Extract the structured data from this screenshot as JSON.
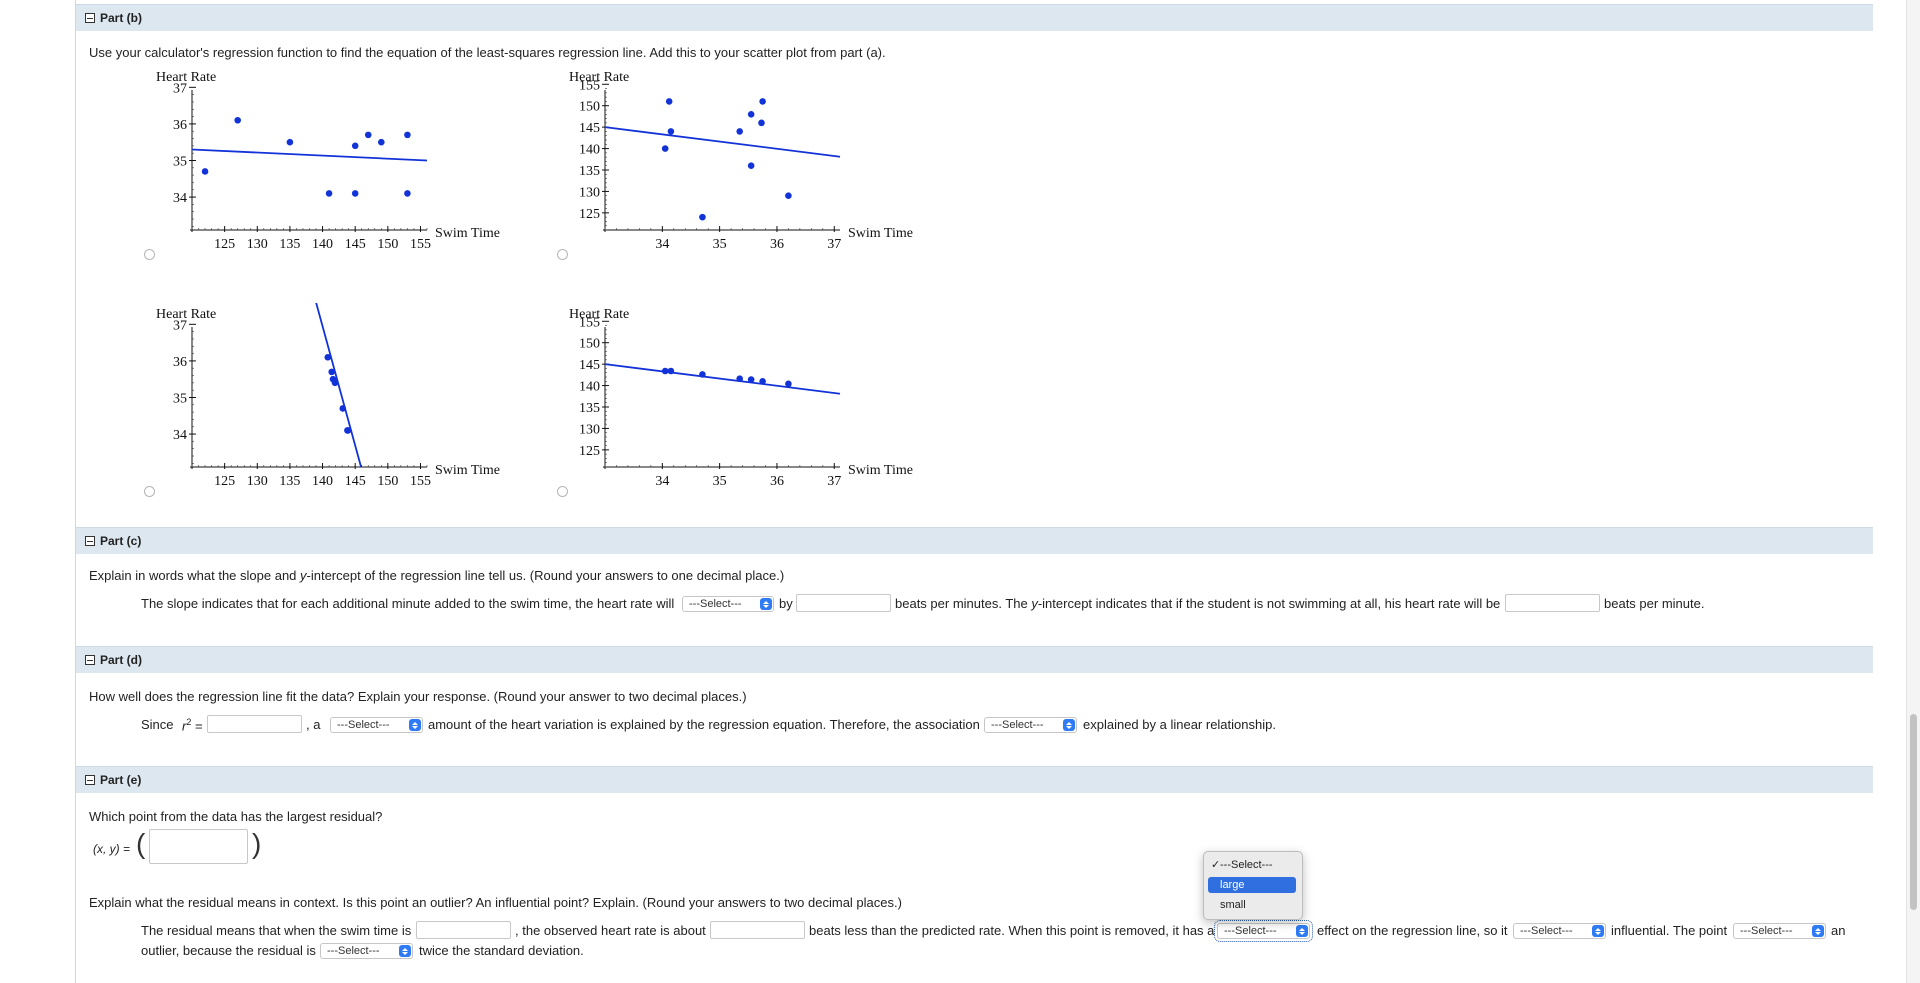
{
  "part_b": {
    "title": "Part (b)",
    "question": "Use your calculator's regression function to find the equation of the least-squares regression line. Add this to your scatter plot from part (a)."
  },
  "chart_data": [
    {
      "type": "scatter",
      "ylabel": "Heart Rate",
      "xlabel": "Swim Time",
      "x_ticks": [
        125,
        130,
        135,
        140,
        145,
        150,
        155
      ],
      "y_ticks": [
        34,
        35,
        36,
        37
      ],
      "xlim": [
        120,
        156
      ],
      "ylim": [
        33.1,
        37.2
      ],
      "points": [
        {
          "x": 127,
          "y": 36.1
        },
        {
          "x": 122,
          "y": 34.7
        },
        {
          "x": 135,
          "y": 35.5
        },
        {
          "x": 141,
          "y": 34.1
        },
        {
          "x": 145,
          "y": 34.1
        },
        {
          "x": 145,
          "y": 35.4
        },
        {
          "x": 147,
          "y": 35.7
        },
        {
          "x": 149,
          "y": 35.5
        },
        {
          "x": 153,
          "y": 35.7
        },
        {
          "x": 153,
          "y": 34.1
        }
      ],
      "line": [
        {
          "x": 120,
          "y": 35.3
        },
        {
          "x": 156,
          "y": 35.0
        }
      ]
    },
    {
      "type": "scatter",
      "ylabel": "Heart Rate",
      "xlabel": "Swim Time",
      "x_ticks": [
        34,
        35,
        36,
        37
      ],
      "y_ticks": [
        125,
        130,
        135,
        140,
        145,
        150,
        155
      ],
      "xlim": [
        33.0,
        37.1
      ],
      "ylim": [
        121,
        156
      ],
      "points": [
        {
          "x": 34.12,
          "y": 151
        },
        {
          "x": 34.15,
          "y": 144
        },
        {
          "x": 34.05,
          "y": 140
        },
        {
          "x": 34.7,
          "y": 124
        },
        {
          "x": 35.35,
          "y": 144
        },
        {
          "x": 35.55,
          "y": 148
        },
        {
          "x": 35.55,
          "y": 136
        },
        {
          "x": 35.75,
          "y": 151
        },
        {
          "x": 35.73,
          "y": 146
        },
        {
          "x": 36.2,
          "y": 129
        }
      ],
      "line": [
        {
          "x": 33.0,
          "y": 145.0
        },
        {
          "x": 37.1,
          "y": 138.1
        }
      ]
    },
    {
      "type": "scatter",
      "ylabel": "Heart Rate",
      "xlabel": "Swim Time",
      "x_ticks": [
        125,
        130,
        135,
        140,
        145,
        150,
        155
      ],
      "y_ticks": [
        34,
        35,
        36,
        37
      ],
      "xlim": [
        120,
        156
      ],
      "ylim": [
        33.1,
        37.2
      ],
      "points": [
        {
          "x": 140.8,
          "y": 36.1
        },
        {
          "x": 141.4,
          "y": 35.7
        },
        {
          "x": 141.6,
          "y": 35.5
        },
        {
          "x": 141.9,
          "y": 35.4
        },
        {
          "x": 143.1,
          "y": 34.7
        },
        {
          "x": 143.8,
          "y": 34.1
        },
        {
          "x": 143.9,
          "y": 34.1
        }
      ],
      "line": [
        {
          "x": 139.0,
          "y": 37.6
        },
        {
          "x": 145.9,
          "y": 33.1
        }
      ]
    },
    {
      "type": "scatter",
      "ylabel": "Heart Rate",
      "xlabel": "Swim Time",
      "x_ticks": [
        34,
        35,
        36,
        37
      ],
      "y_ticks": [
        125,
        130,
        135,
        140,
        145,
        150,
        155
      ],
      "xlim": [
        33.0,
        37.1
      ],
      "ylim": [
        121,
        156
      ],
      "points": [
        {
          "x": 34.05,
          "y": 143.4
        },
        {
          "x": 34.15,
          "y": 143.4
        },
        {
          "x": 34.7,
          "y": 142.6
        },
        {
          "x": 35.35,
          "y": 141.6
        },
        {
          "x": 35.55,
          "y": 141.4
        },
        {
          "x": 35.75,
          "y": 141.0
        },
        {
          "x": 36.2,
          "y": 140.4
        }
      ],
      "line": [
        {
          "x": 33.0,
          "y": 145.0
        },
        {
          "x": 37.1,
          "y": 138.1
        }
      ]
    }
  ],
  "part_c": {
    "title": "Part (c)",
    "question_pre": "Explain in words what the slope and ",
    "question_y": "y",
    "question_post": "-intercept of the regression line tell us. (Round your answers to one decimal place.)",
    "s1": "The slope indicates that for each additional minute added to the swim time, the heart rate will",
    "select1": "---Select---",
    "s2": "by",
    "s3_pre": "beats per minutes. The ",
    "s3_y": "y",
    "s3_post": "-intercept indicates that if the student is not swimming at all, his heart rate will be",
    "s4": "beats per minute."
  },
  "part_d": {
    "title": "Part (d)",
    "question": "How well does the regression line fit the data? Explain your response. (Round your answer to two decimal places.)",
    "since": "Since",
    "r": "r",
    "sup": "2",
    "eq": "=",
    "comma_a": ",  a",
    "select1": "---Select---",
    "s2": "amount of the heart variation is explained by the regression equation. Therefore, the association",
    "select2": "---Select---",
    "s3": "explained by a linear relationship."
  },
  "part_e": {
    "title": "Part (e)",
    "question1": "Which point from the data has the largest residual?",
    "xy_label": "(x, y) =",
    "question2": "Explain what the residual means in context. Is this point an outlier? An influential point? Explain. (Round your answers to two decimal places.)",
    "s1": "The residual means that when the swim time is",
    "s2": ", the observed heart rate is about",
    "s3": "beats less than the predicted rate. When this point is removed, it has a",
    "select1": "---Select---",
    "s4": "effect on the regression line, so it",
    "select2": "---Select---",
    "s5": "influential. The point",
    "select3": "---Select---",
    "s6": "an",
    "s7": "outlier, because the residual is",
    "select4": "---Select---",
    "s8": "twice the standard deviation."
  },
  "dropdown": {
    "check": "✓",
    "options": [
      "---Select---",
      "large",
      "small"
    ]
  }
}
